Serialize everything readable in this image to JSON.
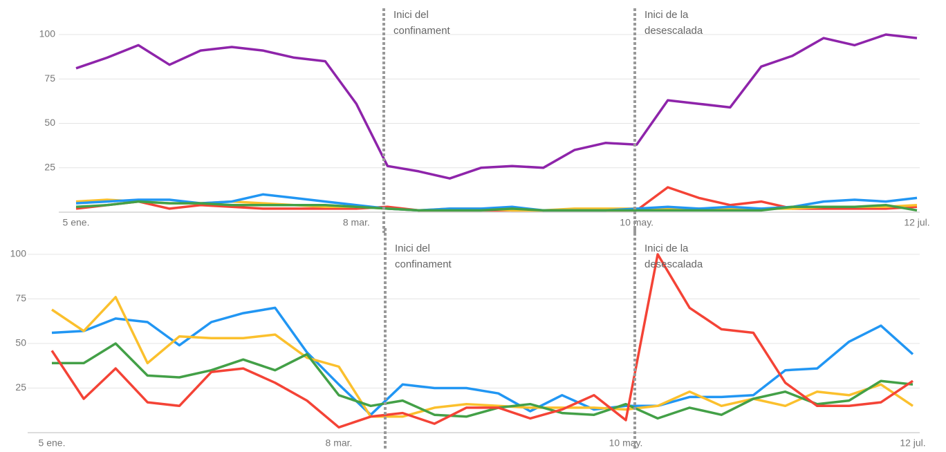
{
  "chart_data": [
    {
      "type": "line",
      "categories": [
        "5 ene.",
        null,
        null,
        null,
        null,
        null,
        null,
        null,
        null,
        "8 mar.",
        null,
        null,
        null,
        null,
        null,
        null,
        null,
        null,
        "10 may.",
        null,
        null,
        null,
        null,
        null,
        null,
        null,
        null,
        "12 jul."
      ],
      "ylim": [
        0,
        100
      ],
      "yticks": [
        25,
        50,
        75,
        100
      ],
      "grid": true,
      "annotations": [
        [
          "Inici  del",
          "confinament"
        ],
        [
          "Inici  de la",
          "desescalada"
        ]
      ],
      "series": [
        {
          "color": "#f44336",
          "values": [
            2,
            4,
            6,
            2,
            4,
            3,
            2,
            2,
            2,
            2,
            3,
            1,
            1,
            1,
            1,
            1,
            1,
            1,
            1,
            14,
            8,
            4,
            6,
            2,
            2,
            2,
            2,
            3
          ]
        },
        {
          "color": "#fbc02d",
          "values": [
            6,
            7,
            6,
            5,
            5,
            6,
            5,
            4,
            3,
            3,
            2,
            1,
            2,
            2,
            1,
            1,
            2,
            2,
            2,
            2,
            2,
            2,
            2,
            2,
            3,
            3,
            3,
            4
          ]
        },
        {
          "color": "#2196f3",
          "values": [
            5,
            6,
            7,
            7,
            5,
            6,
            10,
            8,
            6,
            4,
            2,
            1,
            2,
            2,
            3,
            1,
            1,
            1,
            2,
            3,
            2,
            3,
            2,
            3,
            6,
            7,
            6,
            8
          ]
        },
        {
          "color": "#43a047",
          "values": [
            3,
            4,
            6,
            5,
            5,
            4,
            4,
            4,
            4,
            3,
            2,
            1,
            1,
            1,
            2,
            1,
            1,
            1,
            1,
            1,
            1,
            1,
            1,
            3,
            3,
            3,
            4,
            1
          ]
        },
        {
          "color": "#8e24aa",
          "values": [
            81,
            87,
            94,
            83,
            91,
            93,
            91,
            87,
            85,
            61,
            26,
            23,
            19,
            25,
            26,
            25,
            35,
            39,
            38,
            63,
            61,
            59,
            82,
            88,
            98,
            94,
            100,
            98
          ]
        }
      ]
    },
    {
      "type": "line",
      "categories": [
        "5 ene.",
        null,
        null,
        null,
        null,
        null,
        null,
        null,
        null,
        "8 mar.",
        null,
        null,
        null,
        null,
        null,
        null,
        null,
        null,
        "10 may.",
        null,
        null,
        null,
        null,
        null,
        null,
        null,
        null,
        "12 jul."
      ],
      "ylim": [
        0,
        100
      ],
      "yticks": [
        25,
        50,
        75,
        100
      ],
      "grid": true,
      "annotations": [
        [
          "Inici  del",
          "confinament"
        ],
        [
          "Inici  de la",
          "desescalada"
        ]
      ],
      "series": [
        {
          "color": "#2196f3",
          "values": [
            56,
            57,
            64,
            62,
            49,
            62,
            67,
            70,
            45,
            27,
            10,
            27,
            25,
            25,
            22,
            12,
            21,
            13,
            15,
            15,
            20,
            20,
            21,
            35,
            36,
            51,
            60,
            44
          ]
        },
        {
          "color": "#fbc02d",
          "values": [
            69,
            57,
            76,
            39,
            54,
            53,
            53,
            55,
            42,
            37,
            9,
            9,
            14,
            16,
            15,
            14,
            14,
            14,
            13,
            15,
            23,
            15,
            19,
            15,
            23,
            21,
            27,
            15
          ]
        },
        {
          "color": "#43a047",
          "values": [
            39,
            39,
            50,
            32,
            31,
            35,
            41,
            35,
            44,
            21,
            15,
            18,
            10,
            9,
            14,
            16,
            11,
            10,
            16,
            8,
            14,
            10,
            19,
            23,
            16,
            18,
            29,
            27
          ]
        },
        {
          "color": "#f44336",
          "values": [
            46,
            19,
            36,
            17,
            15,
            34,
            36,
            28,
            18,
            3,
            9,
            11,
            5,
            14,
            14,
            8,
            13,
            21,
            7,
            100,
            70,
            58,
            56,
            28,
            15,
            15,
            17,
            29
          ]
        }
      ]
    }
  ]
}
